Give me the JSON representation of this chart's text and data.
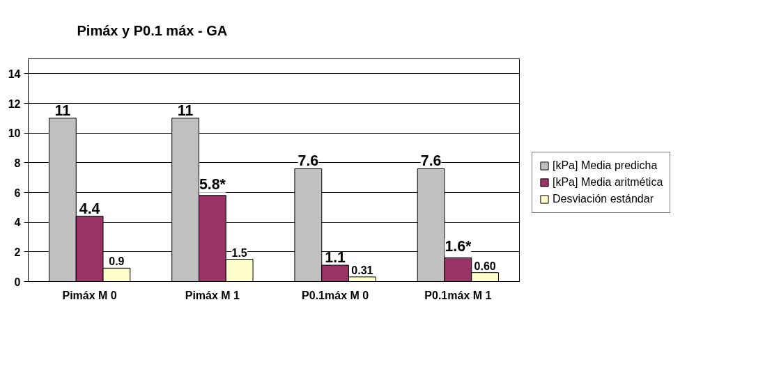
{
  "chart_data": {
    "type": "bar",
    "title": "Pimáx y P0.1 máx  -  GA",
    "categories": [
      "Pimáx M 0",
      "Pimáx M 1",
      "P0.1máx M 0",
      "P0.1máx M 1"
    ],
    "series": [
      {
        "name": "[kPa] Media predicha",
        "color": "#c0c0c0",
        "values": [
          11,
          11,
          7.6,
          7.6
        ],
        "value_labels": [
          "11",
          "11",
          "7.6",
          "7.6"
        ]
      },
      {
        "name": "[kPa] Media aritmética",
        "color": "#993366",
        "values": [
          4.4,
          5.8,
          1.1,
          1.6
        ],
        "value_labels": [
          "4.4",
          "5.8*",
          "1.1",
          "1.6*"
        ]
      },
      {
        "name": "Desviación estándar",
        "color": "#ffffcc",
        "values": [
          0.9,
          1.5,
          0.31,
          0.6
        ],
        "value_labels": [
          "0.9",
          "1.5",
          "0.31",
          "0.60"
        ]
      }
    ],
    "ylim": [
      0,
      15
    ],
    "yticks": [
      0,
      2,
      4,
      6,
      8,
      10,
      12,
      14
    ],
    "grid": "y",
    "legend": "right"
  }
}
